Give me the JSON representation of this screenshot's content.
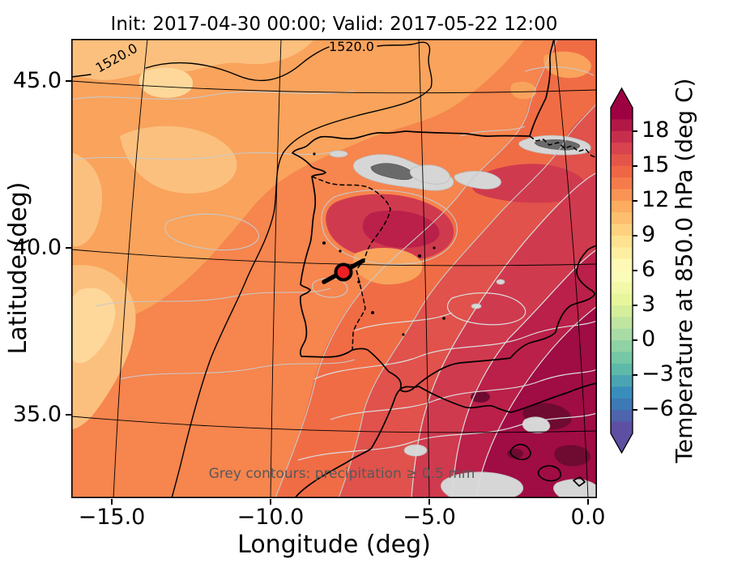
{
  "figure": {
    "title": "Init: 2017-04-30 00:00; Valid: 2017-05-22 12:00",
    "background": "#ffffff"
  },
  "xaxis": {
    "label": "Longitude (deg)",
    "ticks": [
      "−15.0",
      "−10.0",
      "−5.0",
      "0.0"
    ]
  },
  "yaxis": {
    "label": "Latitude (deg)",
    "ticks": [
      "45.0",
      "40.0",
      "35.0"
    ]
  },
  "colorbar": {
    "label": "Temperature at 850.0 hPa (deg C)",
    "ticks": [
      "18",
      "15",
      "12",
      "9",
      "6",
      "3",
      "0",
      "−3",
      "−6"
    ],
    "extend": "both",
    "band_colors": [
      "#9e0142",
      "#b21847",
      "#c72e4c",
      "#d8434e",
      "#e45549",
      "#ef6645",
      "#f67b4a",
      "#f99455",
      "#fdac60",
      "#fdbf6f",
      "#fed17f",
      "#fee28f",
      "#feeea2",
      "#fff9b5",
      "#fafdb8",
      "#f1f9a9",
      "#e8f69b",
      "#d5ee9c",
      "#bfe5a0",
      "#a8dca4",
      "#8fd2a4",
      "#75c8a5",
      "#5eb9a9",
      "#4ba4b1",
      "#388eba",
      "#3d79b6",
      "#4e64ac",
      "#5e4fa2"
    ]
  },
  "map": {
    "annotation": "Grey contours: precipitation ≥ 0.5 mm",
    "annotation_color": "#58585a",
    "contour_labels": [
      "1520.0",
      "1520.0"
    ],
    "marker_color": "#ed2024",
    "palette": {
      "lightest_orange": "#fdd89a",
      "light_orange": "#fcc07e",
      "orange": "#f9a35c",
      "base_orange": "#f6854e",
      "orange_red": "#f06c45",
      "red": "#e0524b",
      "crimson": "#d03a4e",
      "dark_crimson": "#ba2049",
      "darkest_crimson": "#a00c44",
      "over_maroon": "#6f0a31",
      "precip_grey_fill": "#d6d6d6",
      "precip_grey_dark": "#6a6a6a",
      "precip_contour_grey": "#c9c9c9"
    }
  },
  "chart_data": {
    "type": "heatmap",
    "title": "Init: 2017-04-30 00:00; Valid: 2017-05-22 12:00",
    "xlabel": "Longitude (deg)",
    "ylabel": "Latitude (deg)",
    "xlim": [
      -16.3,
      0.3
    ],
    "ylim": [
      32.6,
      46.3
    ],
    "x_ticks": [
      -15.0,
      -10.0,
      -5.0,
      0.0
    ],
    "y_ticks": [
      45.0,
      40.0,
      35.0
    ],
    "colorbar_label": "Temperature at 850.0 hPa (deg C)",
    "colorbar_ticks": [
      18,
      15,
      12,
      9,
      6,
      3,
      0,
      -3,
      -6
    ],
    "colorbar_range": [
      -8,
      20
    ],
    "colormap": "Spectral_r, discrete 1 degC bands, arrow extensions both ends",
    "field_description": "Filled 850 hPa temperature contours over the Iberian Peninsula: about 8-11 degC (light orange) in the NW Atlantic corner, 12-15 degC (orange to orange-red) over NW/central Iberia and SW France, increasing toward 18-20 degC (dark crimson) over SE Spain, the Mediterranean and North Africa, with small >20 degC maroon patches in the far SE",
    "overlays": [
      {
        "name": "geopotential_height_contour",
        "labeled_value": 1520.0,
        "style": "thin black line, two 1520.0 labels near top"
      },
      {
        "name": "precipitation_contours",
        "note": "Grey contours: precipitation ≥ 0.5 mm",
        "style": "light grey wiggly lines plus grey filled patches over the Pyrenees, Cantabrian range and SE Mediterranean"
      },
      {
        "name": "location_marker",
        "approx_position_deg": {
          "lon": -7.7,
          "lat": 39.4
        },
        "style": "red dot with thick black edge and black trajectory segment"
      }
    ]
  }
}
